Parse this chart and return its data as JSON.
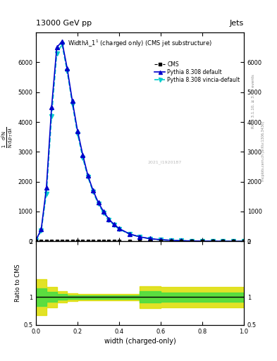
{
  "title_top": "13000 GeV pp",
  "title_right": "Jets",
  "plot_title": "Widthλ_1¹ (charged only) (CMS jet substructure)",
  "xlabel": "width (charged-only)",
  "ylabel_ratio": "Ratio to CMS",
  "watermark": "mcplots.cern.ch [arXiv:1306.3436]",
  "rivet_label": "Rivet 3.1.10, ≥ 3.4M events",
  "stamp": "2021_I1920187",
  "xlim": [
    0.0,
    1.0
  ],
  "ylim_main": [
    0,
    7000
  ],
  "ylim_ratio": [
    0.5,
    2.0
  ],
  "x_data": [
    0.0,
    0.025,
    0.05,
    0.075,
    0.1,
    0.125,
    0.15,
    0.175,
    0.2,
    0.225,
    0.25,
    0.275,
    0.3,
    0.325,
    0.35,
    0.375,
    0.4,
    0.45,
    0.5,
    0.55,
    0.6,
    0.65,
    0.7,
    0.75,
    0.8,
    0.85,
    0.9,
    0.95,
    1.0
  ],
  "cms_y": [
    0,
    0,
    0,
    0,
    0,
    0,
    0,
    0,
    0,
    0,
    0,
    0,
    0,
    0,
    0,
    0,
    0,
    0,
    0,
    0,
    0,
    0,
    0,
    0,
    0,
    0,
    0,
    0,
    0
  ],
  "pythia_default_y": [
    50,
    400,
    1800,
    4500,
    6500,
    6700,
    5800,
    4700,
    3700,
    2900,
    2200,
    1700,
    1300,
    1000,
    750,
    570,
    430,
    250,
    150,
    90,
    55,
    35,
    22,
    14,
    9,
    6,
    4,
    2,
    0
  ],
  "pythia_vincia_y": [
    40,
    350,
    1600,
    4200,
    6300,
    6600,
    5700,
    4600,
    3600,
    2800,
    2150,
    1650,
    1250,
    960,
    720,
    545,
    410,
    240,
    145,
    87,
    53,
    33,
    21,
    13,
    8.5,
    5.5,
    3.5,
    1.8,
    0
  ],
  "cms_color": "#000000",
  "pythia_default_color": "#0000cc",
  "pythia_vincia_color": "#00cccc",
  "band_green_color": "#44dd44",
  "band_yellow_color": "#dddd00",
  "ratio_x_edges": [
    0.0,
    0.05,
    0.1,
    0.15,
    0.2,
    0.25,
    0.3,
    0.35,
    0.4,
    0.45,
    0.5,
    0.6,
    0.7,
    0.8,
    0.9,
    1.0
  ],
  "ratio_yellow_lo": [
    0.68,
    0.82,
    0.9,
    0.93,
    0.94,
    0.94,
    0.94,
    0.94,
    0.94,
    0.94,
    0.8,
    0.82,
    0.82,
    0.82,
    0.82
  ],
  "ratio_yellow_hi": [
    1.32,
    1.18,
    1.1,
    1.07,
    1.06,
    1.06,
    1.06,
    1.06,
    1.06,
    1.06,
    1.2,
    1.18,
    1.18,
    1.18,
    1.18
  ],
  "ratio_green_lo": [
    0.84,
    0.91,
    0.95,
    0.97,
    0.97,
    0.97,
    0.97,
    0.97,
    0.97,
    0.97,
    0.9,
    0.92,
    0.92,
    0.92,
    0.92
  ],
  "ratio_green_hi": [
    1.16,
    1.09,
    1.05,
    1.03,
    1.03,
    1.03,
    1.03,
    1.03,
    1.03,
    1.03,
    1.1,
    1.08,
    1.08,
    1.08,
    1.08
  ],
  "yticks_main": [
    0,
    1000,
    2000,
    3000,
    4000,
    5000,
    6000
  ],
  "ytick_labels_main": [
    "0",
    "1000",
    "2000",
    "3000",
    "4000",
    "5000",
    "6000"
  ],
  "yticks_ratio": [
    0.5,
    1.0,
    2.0
  ],
  "ytick_labels_ratio": [
    "0.5",
    "1",
    "2"
  ]
}
